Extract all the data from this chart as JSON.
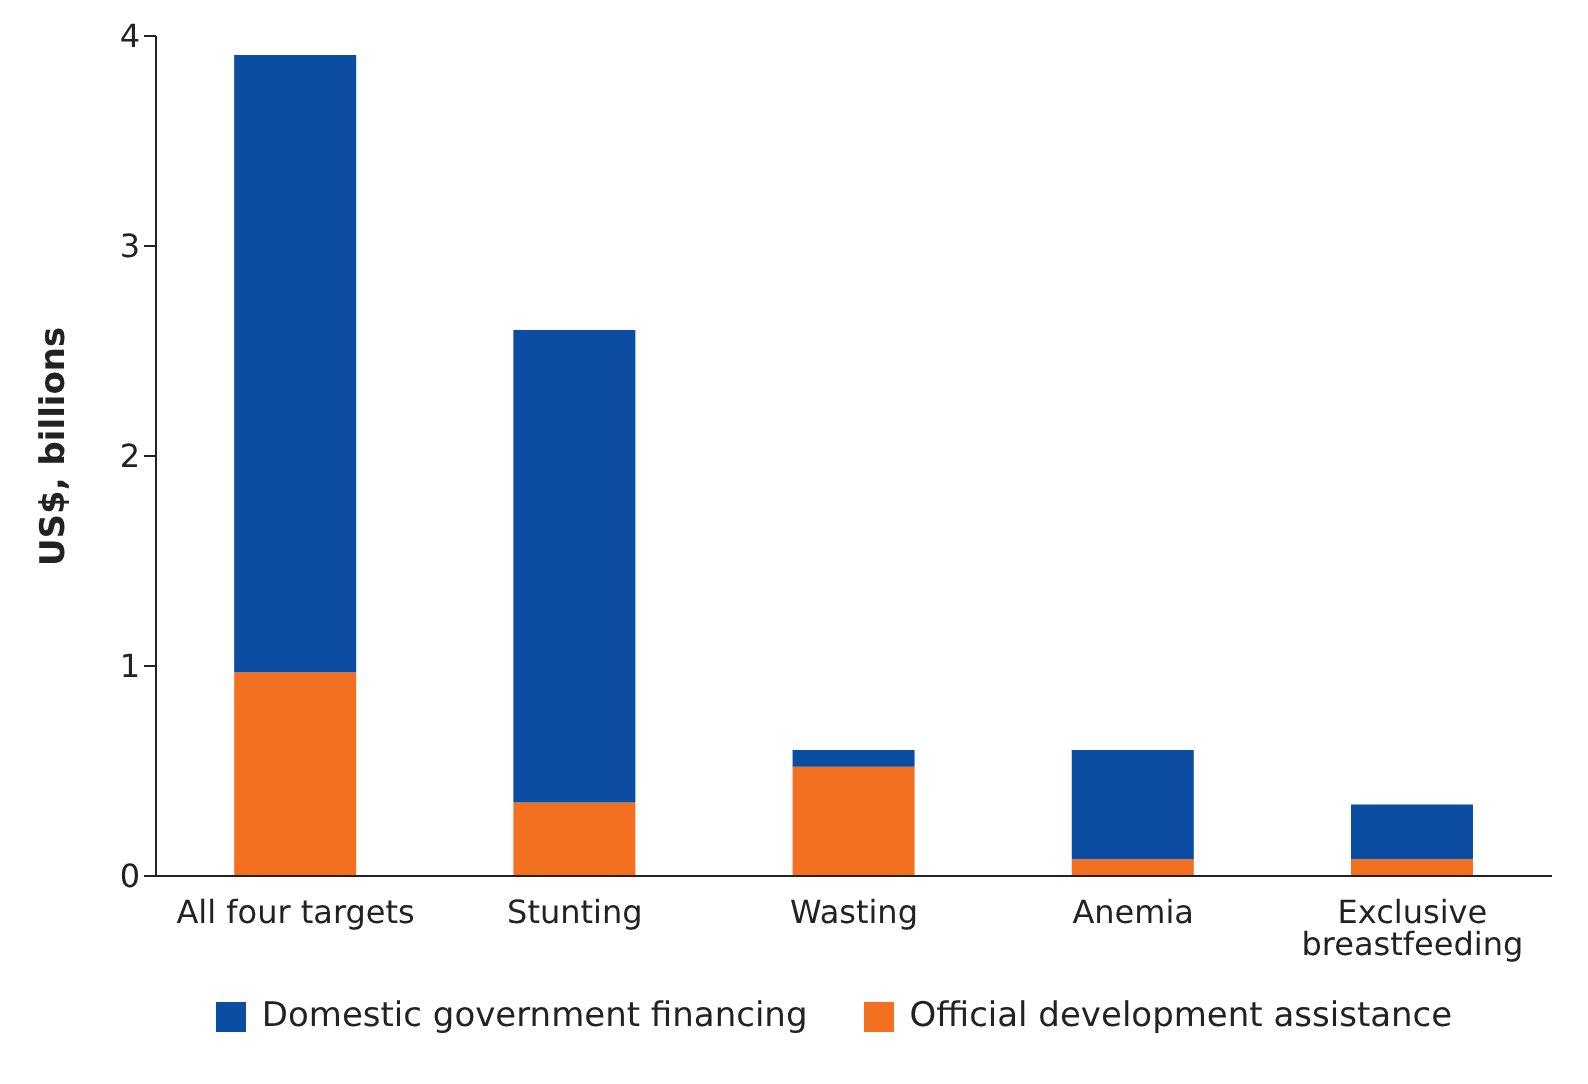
{
  "chart_data": {
    "type": "bar",
    "stacked": true,
    "ylabel": "US$, billions",
    "categories": [
      "All four targets",
      "Stunting",
      "Wasting",
      "Anemia",
      "Exclusive breastfeeding"
    ],
    "series": [
      {
        "name": "Official development assistance",
        "color": "#f37021",
        "values": [
          0.97,
          0.35,
          0.52,
          0.08,
          0.08
        ]
      },
      {
        "name": "Domestic government financing",
        "color": "#0a4da2",
        "values": [
          2.94,
          2.25,
          0.08,
          0.52,
          0.26
        ]
      }
    ],
    "ylim": [
      0,
      4
    ],
    "yticks": [
      0,
      1,
      2,
      3,
      4
    ],
    "grid": false,
    "legend": "bottom"
  }
}
